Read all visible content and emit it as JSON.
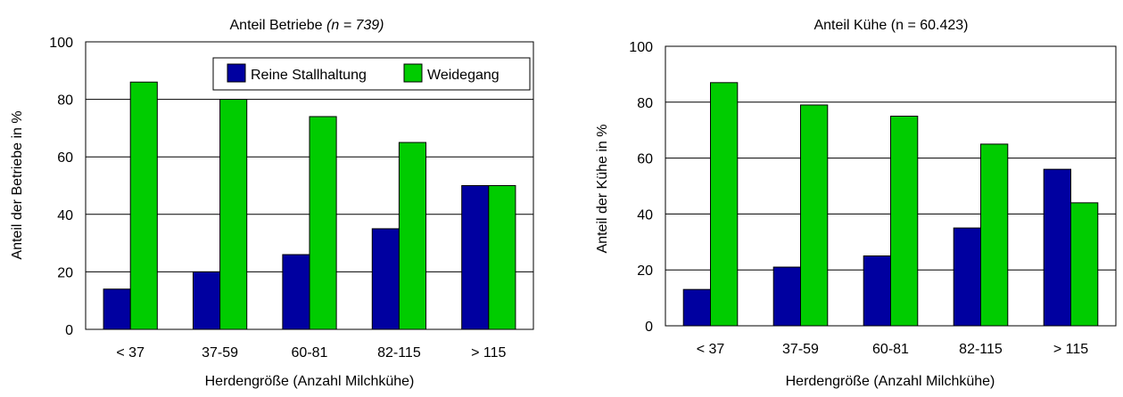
{
  "colors": {
    "stall": "#0000A0",
    "weide": "#00CC00",
    "grid": "#000000"
  },
  "chart_data": [
    {
      "type": "bar",
      "title_main": "Anteil Betriebe ",
      "title_italic": "(n = 739)",
      "xlabel": "Herdengröße (Anzahl Milchkühe)",
      "ylabel": "Anteil der Betriebe in %",
      "ylim": [
        0,
        100
      ],
      "yticks": [
        0,
        20,
        40,
        60,
        80,
        100
      ],
      "grid": true,
      "legend_position": "top-right",
      "categories": [
        "< 37",
        "37-59",
        "60-81",
        "82-115",
        "> 115"
      ],
      "series": [
        {
          "name": "Reine Stallhaltung",
          "values": [
            14,
            20,
            26,
            35,
            50
          ]
        },
        {
          "name": "Weidegang",
          "values": [
            86,
            80,
            74,
            65,
            50
          ]
        }
      ]
    },
    {
      "type": "bar",
      "title_main": "Anteil Kühe (n = 60.423)",
      "title_italic": "",
      "xlabel": "Herdengröße (Anzahl Milchkühe)",
      "ylabel": "Anteil der Kühe in %",
      "ylim": [
        0,
        100
      ],
      "yticks": [
        0,
        20,
        40,
        60,
        80,
        100
      ],
      "grid": true,
      "categories": [
        "< 37",
        "37-59",
        "60-81",
        "82-115",
        "> 115"
      ],
      "series": [
        {
          "name": "Reine Stallhaltung",
          "values": [
            13,
            21,
            25,
            35,
            56
          ]
        },
        {
          "name": "Weidegang",
          "values": [
            87,
            79,
            75,
            65,
            44
          ]
        }
      ]
    }
  ]
}
